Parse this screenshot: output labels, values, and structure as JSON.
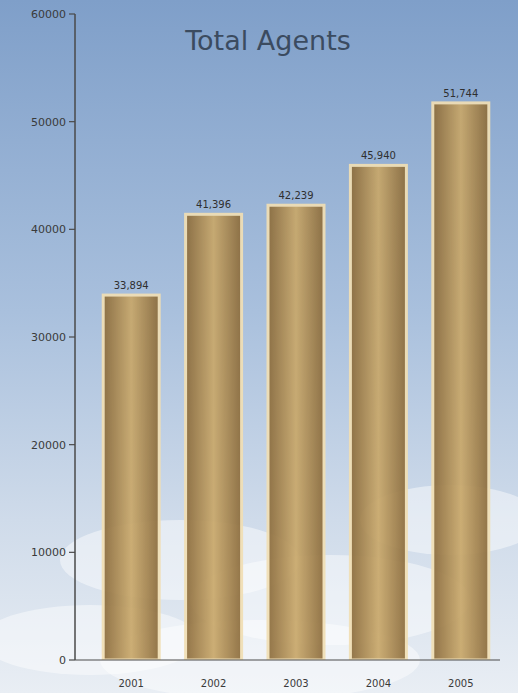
{
  "chart_data": {
    "type": "bar",
    "title": "Total Agents",
    "categories": [
      "2001",
      "2002",
      "2003",
      "2004",
      "2005"
    ],
    "values": [
      33894,
      41396,
      42239,
      45940,
      51744
    ],
    "value_labels": [
      "33,894",
      "41,396",
      "42,239",
      "45,940",
      "51,744"
    ],
    "color": "#c9a86a",
    "ylim": [
      0,
      60000
    ],
    "yticks": [
      0,
      10000,
      20000,
      30000,
      40000,
      50000,
      60000
    ],
    "grid": false,
    "data_labels": true
  }
}
